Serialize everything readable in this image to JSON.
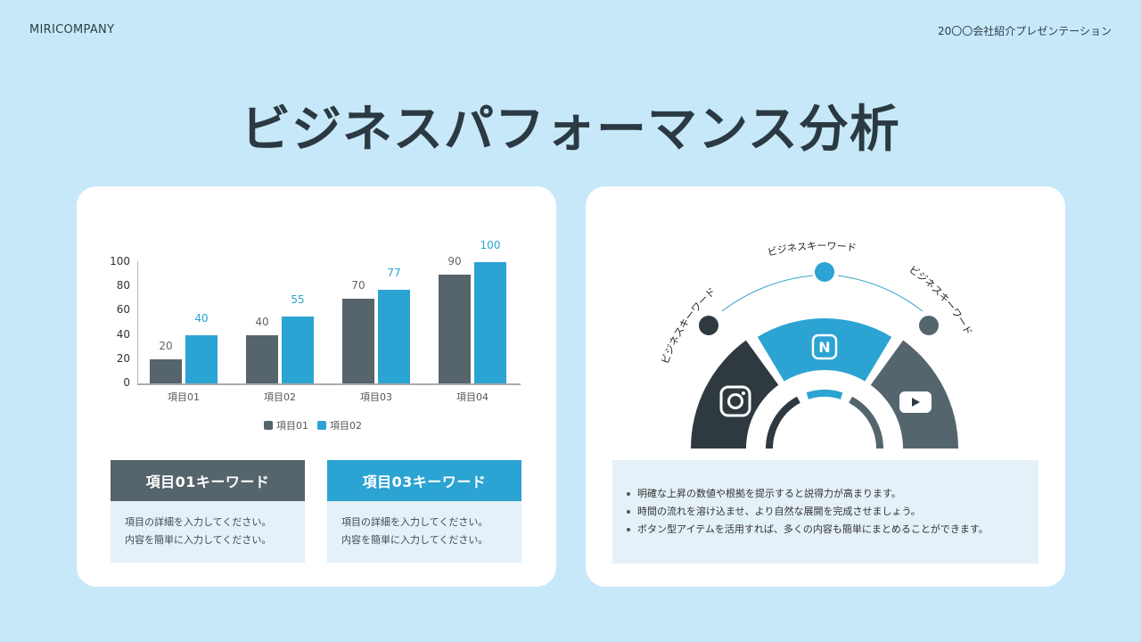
{
  "header": {
    "brand": "MIRICOMPANY",
    "subtitle": "20〇〇会社紹介プレゼンテーション"
  },
  "page_title": "ビジネスパフォーマンス分析",
  "colors": {
    "background": "#c7e8f8",
    "dark_gray": "#56646b",
    "blue": "#2ba3d3",
    "charcoal": "#2e3a40",
    "slate": "#55656d",
    "light_panel": "#e4f1f8"
  },
  "chart_data": {
    "type": "bar",
    "title": "",
    "xlabel": "",
    "ylabel": "",
    "categories": [
      "項目01",
      "項目02",
      "項目03",
      "項目04"
    ],
    "series": [
      {
        "name": "項目01",
        "color": "#56646b",
        "values": [
          20,
          40,
          70,
          90
        ]
      },
      {
        "name": "項目02",
        "color": "#2ba3d3",
        "values": [
          40,
          55,
          77,
          100
        ]
      }
    ],
    "y_ticks": [
      "0",
      "20",
      "40",
      "60",
      "80",
      "100"
    ],
    "ylim": [
      0,
      100
    ],
    "grid": false,
    "legend_position": "bottom",
    "data_labels": true
  },
  "keyword_boxes": [
    {
      "title": "項目01キーワード",
      "color": "#56646b",
      "lines": [
        "項目の詳細を入力してください。",
        "内容を簡単に入力してください。"
      ]
    },
    {
      "title": "項目03キーワード",
      "color": "#2ba3d3",
      "lines": [
        "項目の詳細を入力してください。",
        "内容を簡単に入力してください。"
      ]
    }
  ],
  "diagram": {
    "keywords": [
      "ビジネスキーワード",
      "ビジネスキーワード",
      "ビジネスキーワード"
    ],
    "segments": [
      {
        "icon": "instagram-icon",
        "color": "#2e3a40"
      },
      {
        "icon": "naver-icon",
        "color": "#2ba3d3",
        "glyph": "N"
      },
      {
        "icon": "youtube-icon",
        "color": "#55656d"
      }
    ]
  },
  "bullets": [
    "明確な上昇の数値や根拠を提示すると説得力が高まります。",
    "時間の流れを溶け込ませ、より自然な展開を完成させましょう。",
    "ボタン型アイテムを活用すれば、多くの内容も簡単にまとめることができます。"
  ]
}
